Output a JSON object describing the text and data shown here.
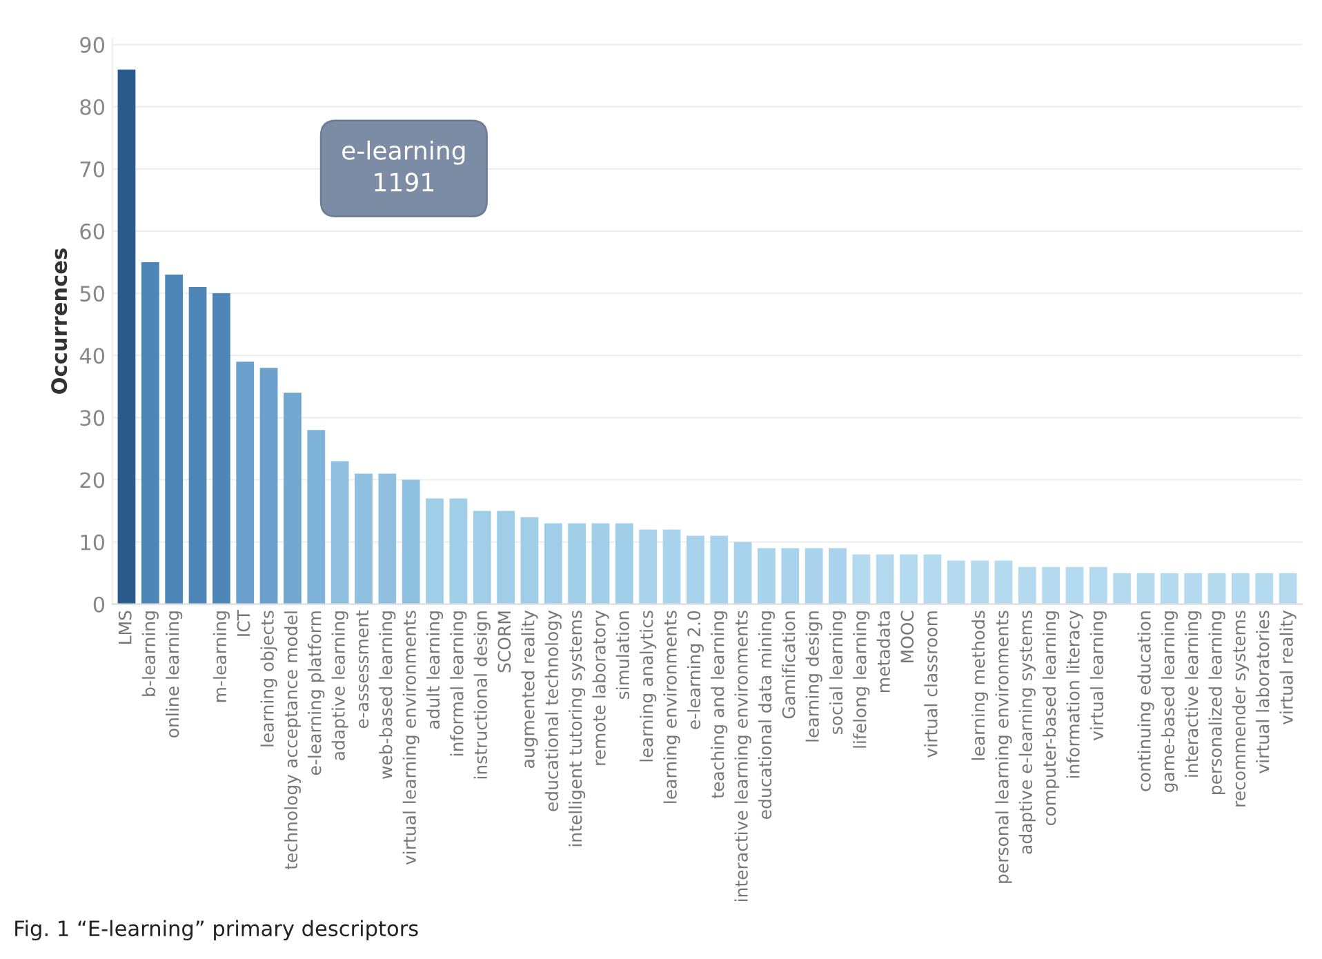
{
  "chart_data": {
    "type": "bar",
    "title": "Fig. 1 “E-learning” primary descriptors",
    "ylabel": "Occurrences",
    "annotations": [
      "e-learning\n1191"
    ],
    "categories": [
      "LMS",
      "b-learning",
      "online learning",
      null,
      "m-learning",
      "ICT",
      "learning objects",
      "technology acceptance model",
      "e-learning platform",
      "adaptive learning",
      "e-assessment",
      "web-based learning",
      "virtual learning environments",
      "adult learning",
      "informal learning",
      "instructional design",
      "SCORM",
      "augmented reality",
      "educational technology",
      "intelligent tutoring systems",
      "remote laboratory",
      "simulation",
      "learning analytics",
      "learning environments",
      "e-learning 2.0",
      "teaching and learning",
      "interactive learning environments",
      "educational data mining",
      "Gamification",
      "learning design",
      "social learning",
      "lifelong learning",
      "metadata",
      "MOOC",
      "virtual classroom",
      null,
      "learning methods",
      "personal learning environments",
      "adaptive e-learning systems",
      "computer-based learning",
      "information literacy",
      "virtual learning",
      null,
      "continuing education",
      "game-based learning",
      "interactive learning",
      "personalized learning",
      "recommender systems",
      "virtual laboratories",
      "virtual reality"
    ],
    "values": [
      86,
      55,
      53,
      51,
      50,
      39,
      38,
      34,
      28,
      23,
      21,
      21,
      20,
      17,
      17,
      15,
      15,
      14,
      13,
      13,
      13,
      13,
      12,
      12,
      11,
      11,
      10,
      9,
      9,
      9,
      9,
      8,
      8,
      8,
      8,
      7,
      7,
      7,
      6,
      6,
      6,
      6,
      5,
      5,
      5,
      5,
      5,
      5,
      5,
      5
    ],
    "colors": [
      "#2b5b8a",
      "#4f86b8",
      "#4f86b8",
      "#4f86b8",
      "#4f86b8",
      "#6aa0cb",
      "#6aa0cb",
      "#72a8d0",
      "#7fb2d8",
      "#8fc0e0",
      "#8fc0e0",
      "#8fc0e0",
      "#8fc0e0",
      "#a0cde8",
      "#a0cde8",
      "#a0cde8",
      "#a0cde8",
      "#a0cde8",
      "#a0cde8",
      "#a0cde8",
      "#a0cde8",
      "#a0cde8",
      "#a9d3ed",
      "#a9d3ed",
      "#a9d3ed",
      "#a9d3ed",
      "#a9d3ed",
      "#a9d3ed",
      "#a9d3ed",
      "#a9d3ed",
      "#a9d3ed",
      "#b4daf0",
      "#b4daf0",
      "#b4daf0",
      "#b4daf0",
      "#b4daf0",
      "#b4daf0",
      "#b4daf0",
      "#b4daf0",
      "#b4daf0",
      "#b4daf0",
      "#b4daf0",
      "#b4daf0",
      "#b4daf0",
      "#b4daf0",
      "#b4daf0",
      "#b4daf0",
      "#b4daf0",
      "#b4daf0",
      "#b4daf0"
    ],
    "ylim": [
      0,
      91
    ],
    "yticks": [
      0,
      10,
      20,
      30,
      40,
      50,
      60,
      70,
      80,
      90
    ],
    "grid": "y",
    "legend": false
  }
}
